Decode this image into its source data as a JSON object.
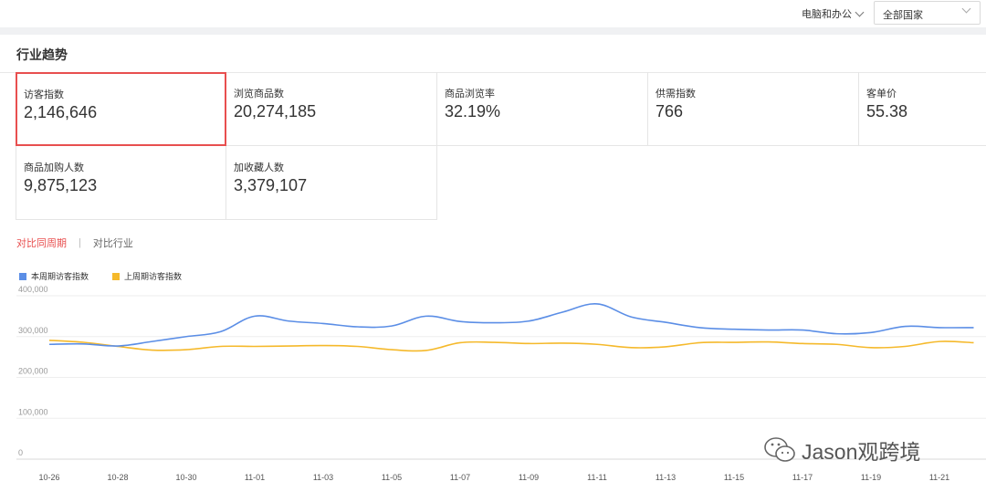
{
  "filters": {
    "category": "电脑和办公",
    "country": "全部国家"
  },
  "section_title": "行业趋势",
  "metrics": [
    {
      "label": "访客指数",
      "value": "2,146,646",
      "active": true
    },
    {
      "label": "浏览商品数",
      "value": "20,274,185"
    },
    {
      "label": "商品浏览率",
      "value": "32.19%"
    },
    {
      "label": "供需指数",
      "value": "766"
    },
    {
      "label": "客单价",
      "value": "55.38"
    },
    {
      "label": "商品加购人数",
      "value": "9,875,123"
    },
    {
      "label": "加收藏人数",
      "value": "3,379,107"
    }
  ],
  "compare_tabs": {
    "active": "对比同周期",
    "other": "对比行业"
  },
  "watermark": "Jason观跨境",
  "chart_data": {
    "type": "line",
    "title": "",
    "xlabel": "",
    "ylabel": "",
    "ylim": [
      0,
      400000
    ],
    "yticks": [
      0,
      100000,
      200000,
      300000,
      400000
    ],
    "ytick_labels": [
      "0",
      "100,000",
      "200,000",
      "300,000",
      "400,000"
    ],
    "grid": true,
    "legend_position": "top-left",
    "x": [
      "10-26",
      "10-27",
      "10-28",
      "10-29",
      "10-30",
      "10-31",
      "11-01",
      "11-02",
      "11-03",
      "11-04",
      "11-05",
      "11-06",
      "11-07",
      "11-08",
      "11-09",
      "11-10",
      "11-11",
      "11-12",
      "11-13",
      "11-14",
      "11-15",
      "11-16",
      "11-17",
      "11-18",
      "11-19",
      "11-20",
      "11-21",
      "11-22"
    ],
    "xtick_labels": [
      "10-26",
      "10-28",
      "10-30",
      "11-01",
      "11-03",
      "11-05",
      "11-07",
      "11-09",
      "11-11",
      "11-13",
      "11-15",
      "11-17",
      "11-19",
      "11-21"
    ],
    "series": [
      {
        "name": "本周期访客指数",
        "color": "#5b8ee6",
        "values": [
          281000,
          282000,
          277000,
          288000,
          300000,
          312000,
          350000,
          338000,
          332000,
          324000,
          326000,
          350000,
          337000,
          334000,
          338000,
          360000,
          380000,
          348000,
          335000,
          322000,
          318000,
          316000,
          316000,
          307000,
          310000,
          325000,
          322000,
          322000
        ]
      },
      {
        "name": "上周期访客指数",
        "color": "#f5b92b",
        "values": [
          291000,
          286000,
          276000,
          267000,
          268000,
          276000,
          276000,
          277000,
          278000,
          276000,
          268000,
          266000,
          285000,
          286000,
          283000,
          284000,
          281000,
          273000,
          275000,
          285000,
          286000,
          287000,
          283000,
          281000,
          273000,
          276000,
          288000,
          285000
        ]
      }
    ]
  }
}
